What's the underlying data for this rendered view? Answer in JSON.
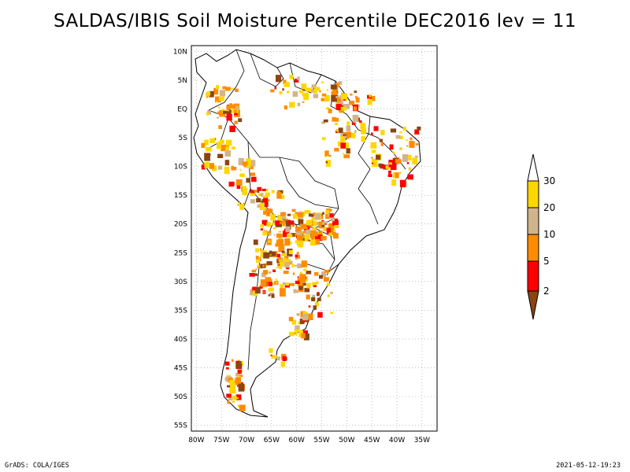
{
  "title": "SALDAS/IBIS Soil Moisture Percentile DEC2016 lev = 11",
  "footer": {
    "left": "GrADS: COLA/IGES",
    "right": "2021-05-12-19:23"
  },
  "map": {
    "lat_range": [
      -56,
      11
    ],
    "lon_range": [
      -81,
      -32
    ],
    "lat_ticks": [
      {
        "value": 10,
        "label": "10N"
      },
      {
        "value": 5,
        "label": "5N"
      },
      {
        "value": 0,
        "label": "EQ"
      },
      {
        "value": -5,
        "label": "5S"
      },
      {
        "value": -10,
        "label": "10S"
      },
      {
        "value": -15,
        "label": "15S"
      },
      {
        "value": -20,
        "label": "20S"
      },
      {
        "value": -25,
        "label": "25S"
      },
      {
        "value": -30,
        "label": "30S"
      },
      {
        "value": -35,
        "label": "35S"
      },
      {
        "value": -40,
        "label": "40S"
      },
      {
        "value": -45,
        "label": "45S"
      },
      {
        "value": -50,
        "label": "50S"
      },
      {
        "value": -55,
        "label": "55S"
      }
    ],
    "lon_ticks": [
      {
        "value": -80,
        "label": "80W"
      },
      {
        "value": -75,
        "label": "75W"
      },
      {
        "value": -70,
        "label": "70W"
      },
      {
        "value": -65,
        "label": "65W"
      },
      {
        "value": -60,
        "label": "60W"
      },
      {
        "value": -55,
        "label": "55W"
      },
      {
        "value": -50,
        "label": "50W"
      },
      {
        "value": -45,
        "label": "45W"
      },
      {
        "value": -40,
        "label": "40W"
      },
      {
        "value": -35,
        "label": "35W"
      }
    ]
  },
  "colorbar": {
    "labels": [
      "30",
      "20",
      "10",
      "5",
      "2"
    ],
    "colors": [
      "#ffd700",
      "#d2b48c",
      "#ff8c00",
      "#ff0000",
      "#8b4513"
    ],
    "top_cap_color": "#ffffff"
  },
  "legend_colors": {
    "lt2": "#8b4513",
    "2to5": "#ff0000",
    "5to10": "#ff8c00",
    "10to20": "#d2b48c",
    "20to30": "#ffd700"
  }
}
